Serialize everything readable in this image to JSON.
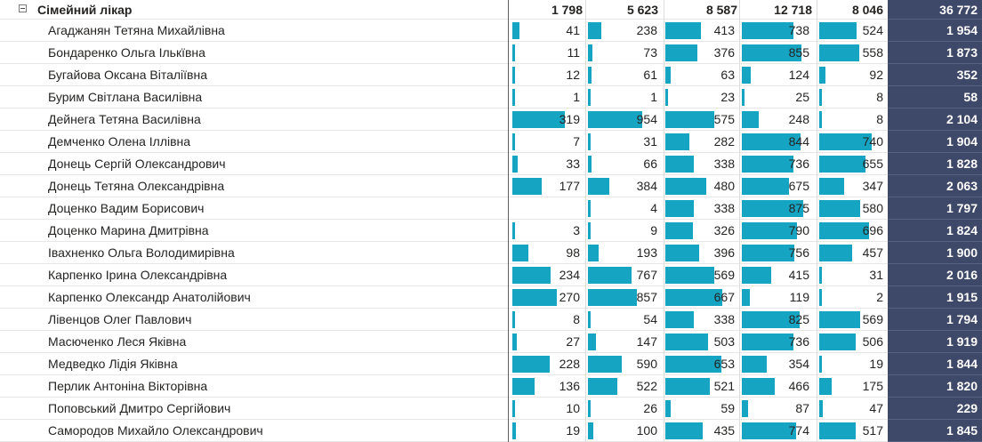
{
  "header": {
    "group_label": "Сімейний лікар",
    "totals": [
      "1 798",
      "5 623",
      "8 587",
      "12 718",
      "8 046"
    ],
    "grand_total": "36 772"
  },
  "colors": {
    "bar": "#15a4c2",
    "total_column": "#3e4868"
  },
  "icons": {
    "expand": "collapse-minus-icon"
  },
  "rows": [
    {
      "name": "Агаджанян Тетяна Михайлівна",
      "v": [
        "41",
        "238",
        "413",
        "738",
        "524"
      ],
      "total": "1 954"
    },
    {
      "name": "Бондаренко Ольга Ількївна",
      "v": [
        "11",
        "73",
        "376",
        "855",
        "558"
      ],
      "total": "1 873"
    },
    {
      "name": "Бугайова Оксана Віталіївна",
      "v": [
        "12",
        "61",
        "63",
        "124",
        "92"
      ],
      "total": "352"
    },
    {
      "name": "Бурим Світлана Василівна",
      "v": [
        "1",
        "1",
        "23",
        "25",
        "8"
      ],
      "total": "58"
    },
    {
      "name": "Дейнега Тетяна Василівна",
      "v": [
        "319",
        "954",
        "575",
        "248",
        "8"
      ],
      "total": "2 104"
    },
    {
      "name": "Демченко Олена Іллівна",
      "v": [
        "7",
        "31",
        "282",
        "844",
        "740"
      ],
      "total": "1 904"
    },
    {
      "name": "Донець Сергій Олександрович",
      "v": [
        "33",
        "66",
        "338",
        "736",
        "655"
      ],
      "total": "1 828"
    },
    {
      "name": "Донець Тетяна Олександрівна",
      "v": [
        "177",
        "384",
        "480",
        "675",
        "347"
      ],
      "total": "2 063"
    },
    {
      "name": "Доценко Вадим Борисович",
      "v": [
        "",
        "4",
        "338",
        "875",
        "580"
      ],
      "total": "1 797"
    },
    {
      "name": "Доценко Марина Дмитрівна",
      "v": [
        "3",
        "9",
        "326",
        "790",
        "696"
      ],
      "total": "1 824"
    },
    {
      "name": "Івахненко Ольга Володимирівна",
      "v": [
        "98",
        "193",
        "396",
        "756",
        "457"
      ],
      "total": "1 900"
    },
    {
      "name": "Карпенко Ірина Олександрівна",
      "v": [
        "234",
        "767",
        "569",
        "415",
        "31"
      ],
      "total": "2 016"
    },
    {
      "name": "Карпенко Олександр Анатолійович",
      "v": [
        "270",
        "857",
        "667",
        "119",
        "2"
      ],
      "total": "1 915"
    },
    {
      "name": "Лівенцов Олег Павлович",
      "v": [
        "8",
        "54",
        "338",
        "825",
        "569"
      ],
      "total": "1 794"
    },
    {
      "name": "Масюченко Леся Яківна",
      "v": [
        "27",
        "147",
        "503",
        "736",
        "506"
      ],
      "total": "1 919"
    },
    {
      "name": "Медведко Лідія Яківна",
      "v": [
        "228",
        "590",
        "653",
        "354",
        "19"
      ],
      "total": "1 844"
    },
    {
      "name": "Перлик Антоніна Вікторівна",
      "v": [
        "136",
        "522",
        "521",
        "466",
        "175"
      ],
      "total": "1 820"
    },
    {
      "name": "Поповський Дмитро Сергійович",
      "v": [
        "10",
        "26",
        "59",
        "87",
        "47"
      ],
      "total": "229"
    },
    {
      "name": "Самородов Михайло Олександрович",
      "v": [
        "19",
        "100",
        "435",
        "774",
        "517"
      ],
      "total": "1 845"
    }
  ]
}
